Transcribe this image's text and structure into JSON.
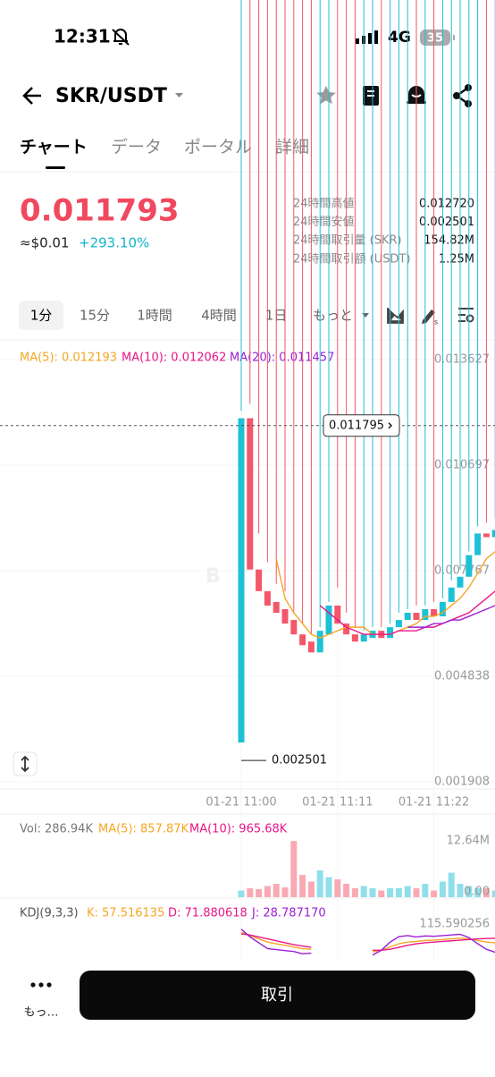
{
  "status_bar": {
    "time": "12:31",
    "network": "4G",
    "battery": "35"
  },
  "header": {
    "pair": "SKR/USDT"
  },
  "tabs": [
    "チャート",
    "データ",
    "ポータル",
    "詳細"
  ],
  "ticker": {
    "price": "0.011793",
    "fiat": "≈$0.01",
    "change": "+293.10%",
    "stats": [
      {
        "label": "24時間高値",
        "value": "0.012720"
      },
      {
        "label": "24時間安値",
        "value": "0.002501"
      },
      {
        "label": "24時間取引量 (SKR)",
        "value": "154.82M"
      },
      {
        "label": "24時間取引額 (USDT)",
        "value": "1.25M"
      }
    ]
  },
  "intervals": [
    "1分",
    "15分",
    "1時間",
    "4時間",
    "1日",
    "もっと"
  ],
  "chart_data": {
    "type": "candlestick",
    "up_color": "#1dc1d6",
    "down_color": "#f4566a",
    "open": [
      0.003,
      0.012,
      0.0078,
      0.0072,
      0.0069,
      0.0067,
      0.0064,
      0.006,
      0.0058,
      0.0055,
      0.006,
      0.0068,
      0.0063,
      0.006,
      0.0058,
      0.0059,
      0.0061,
      0.0059,
      0.0062,
      0.0064,
      0.0066,
      0.0064,
      0.0067,
      0.0065,
      0.0069,
      0.0073,
      0.0076,
      0.0082,
      0.0088,
      0.0087
    ],
    "high": [
      0.0122,
      0.0124,
      0.0088,
      0.008,
      0.0074,
      0.0072,
      0.0066,
      0.0063,
      0.006,
      0.0062,
      0.0069,
      0.0073,
      0.0066,
      0.0062,
      0.0061,
      0.0062,
      0.0062,
      0.0063,
      0.0066,
      0.0067,
      0.0068,
      0.0068,
      0.0069,
      0.007,
      0.0075,
      0.0078,
      0.0083,
      0.009,
      0.0091,
      0.0092
    ],
    "low": {
      "value": 0.002501,
      "label": "0.002501"
    },
    "close": [
      0.012,
      0.0078,
      0.0072,
      0.0068,
      0.0066,
      0.0063,
      0.006,
      0.0057,
      0.0055,
      0.0061,
      0.0068,
      0.0063,
      0.006,
      0.0058,
      0.006,
      0.0061,
      0.0059,
      0.0062,
      0.0064,
      0.0066,
      0.0064,
      0.0067,
      0.0065,
      0.0069,
      0.0073,
      0.0076,
      0.0082,
      0.0088,
      0.0087,
      0.0089
    ],
    "ma": [
      {
        "name": "MA(5): 0.012193",
        "color": "#f5a623",
        "values": [
          null,
          null,
          null,
          null,
          0.0081,
          0.007,
          0.0066,
          0.0063,
          0.006,
          0.0059,
          0.006,
          0.0061,
          0.0062,
          0.0062,
          0.0062,
          0.006,
          0.006,
          0.006,
          0.0061,
          0.0062,
          0.0063,
          0.0065,
          0.0065,
          0.0066,
          0.0068,
          0.007,
          0.0073,
          0.0077,
          0.0081,
          0.0083
        ]
      },
      {
        "name": "MA(10): 0.012062",
        "color": "#e8178a",
        "values": [
          null,
          null,
          null,
          null,
          null,
          null,
          null,
          null,
          null,
          0.0068,
          0.0066,
          0.0064,
          0.0062,
          0.0061,
          0.006,
          0.006,
          0.006,
          0.006,
          0.0061,
          0.0061,
          0.0061,
          0.0062,
          0.0062,
          0.0063,
          0.0064,
          0.0065,
          0.0066,
          0.0068,
          0.007,
          0.0072
        ]
      },
      {
        "name": "MA(20): 0.011457",
        "color": "#9b1fd6",
        "values": [
          null,
          null,
          null,
          null,
          null,
          null,
          null,
          null,
          null,
          null,
          null,
          null,
          null,
          null,
          null,
          null,
          null,
          null,
          null,
          0.0062,
          0.0062,
          0.0062,
          0.0063,
          0.0063,
          0.0064,
          0.0064,
          0.0065,
          0.0066,
          0.0067,
          0.0068
        ]
      }
    ],
    "ylim": [
      0.001908,
      0.013627
    ],
    "yticks": [
      0.013627,
      0.010697,
      0.007767,
      0.004838,
      0.001908
    ],
    "last_price": {
      "value": 0.011795,
      "label": "0.011795"
    },
    "xticks": [
      {
        "value": 0,
        "label": "01-21 11:00"
      },
      {
        "value": 11,
        "label": "01-21 11:11"
      },
      {
        "value": 22,
        "label": "01-21 11:22"
      }
    ]
  },
  "volume": {
    "legend": [
      "Vol: 286.94K",
      "MA(5): 857.87K",
      "MA(10): 965.68K"
    ],
    "values": [
      1.5,
      2.0,
      1.8,
      2.5,
      3.0,
      2.2,
      12.6,
      5.0,
      3.5,
      6.0,
      4.5,
      4.0,
      3.0,
      2.0,
      2.5,
      2.0,
      1.5,
      2.0,
      2.0,
      2.5,
      2.0,
      3.0,
      1.5,
      3.5,
      5.5,
      3.0,
      2.5,
      2.0,
      2.0,
      1.5
    ],
    "ylim": [
      0,
      12.64
    ],
    "yticks": [
      {
        "value": 12.64,
        "label": "12.64M"
      },
      {
        "value": 0,
        "label": "0.00"
      }
    ]
  },
  "kdj": {
    "legend": [
      "KDJ(9,3,3)",
      "K: 57.516135",
      "D: 71.880618",
      "J: 28.787170"
    ],
    "series": [
      {
        "color": "#f5a623",
        "values": [
          90,
          80,
          70,
          60,
          55,
          50,
          45,
          40,
          38,
          null,
          null,
          null,
          null,
          null,
          null,
          30,
          35,
          45,
          55,
          60,
          62,
          65,
          66,
          68,
          70,
          72,
          70,
          65,
          60,
          57.516135
        ]
      },
      {
        "color": "#e8178a",
        "values": [
          85,
          82,
          76,
          70,
          64,
          58,
          52,
          48,
          44,
          null,
          null,
          null,
          null,
          null,
          null,
          35,
          35,
          38,
          44,
          50,
          55,
          58,
          60,
          62,
          64,
          66,
          68,
          70,
          71,
          71.880618
        ]
      },
      {
        "color": "#9b1fd6",
        "values": [
          100,
          76,
          58,
          40,
          37,
          34,
          31,
          24,
          26,
          null,
          null,
          null,
          null,
          null,
          null,
          20,
          35,
          60,
          77,
          80,
          76,
          79,
          78,
          80,
          82,
          84,
          74,
          55,
          38,
          28.78717
        ]
      }
    ],
    "ylim": [
      0,
      115.590256
    ],
    "yticks": [
      {
        "value": 115.590256,
        "label": "115.590256"
      }
    ]
  },
  "bottom_bar": {
    "more": "もっ…",
    "trade": "取引"
  }
}
